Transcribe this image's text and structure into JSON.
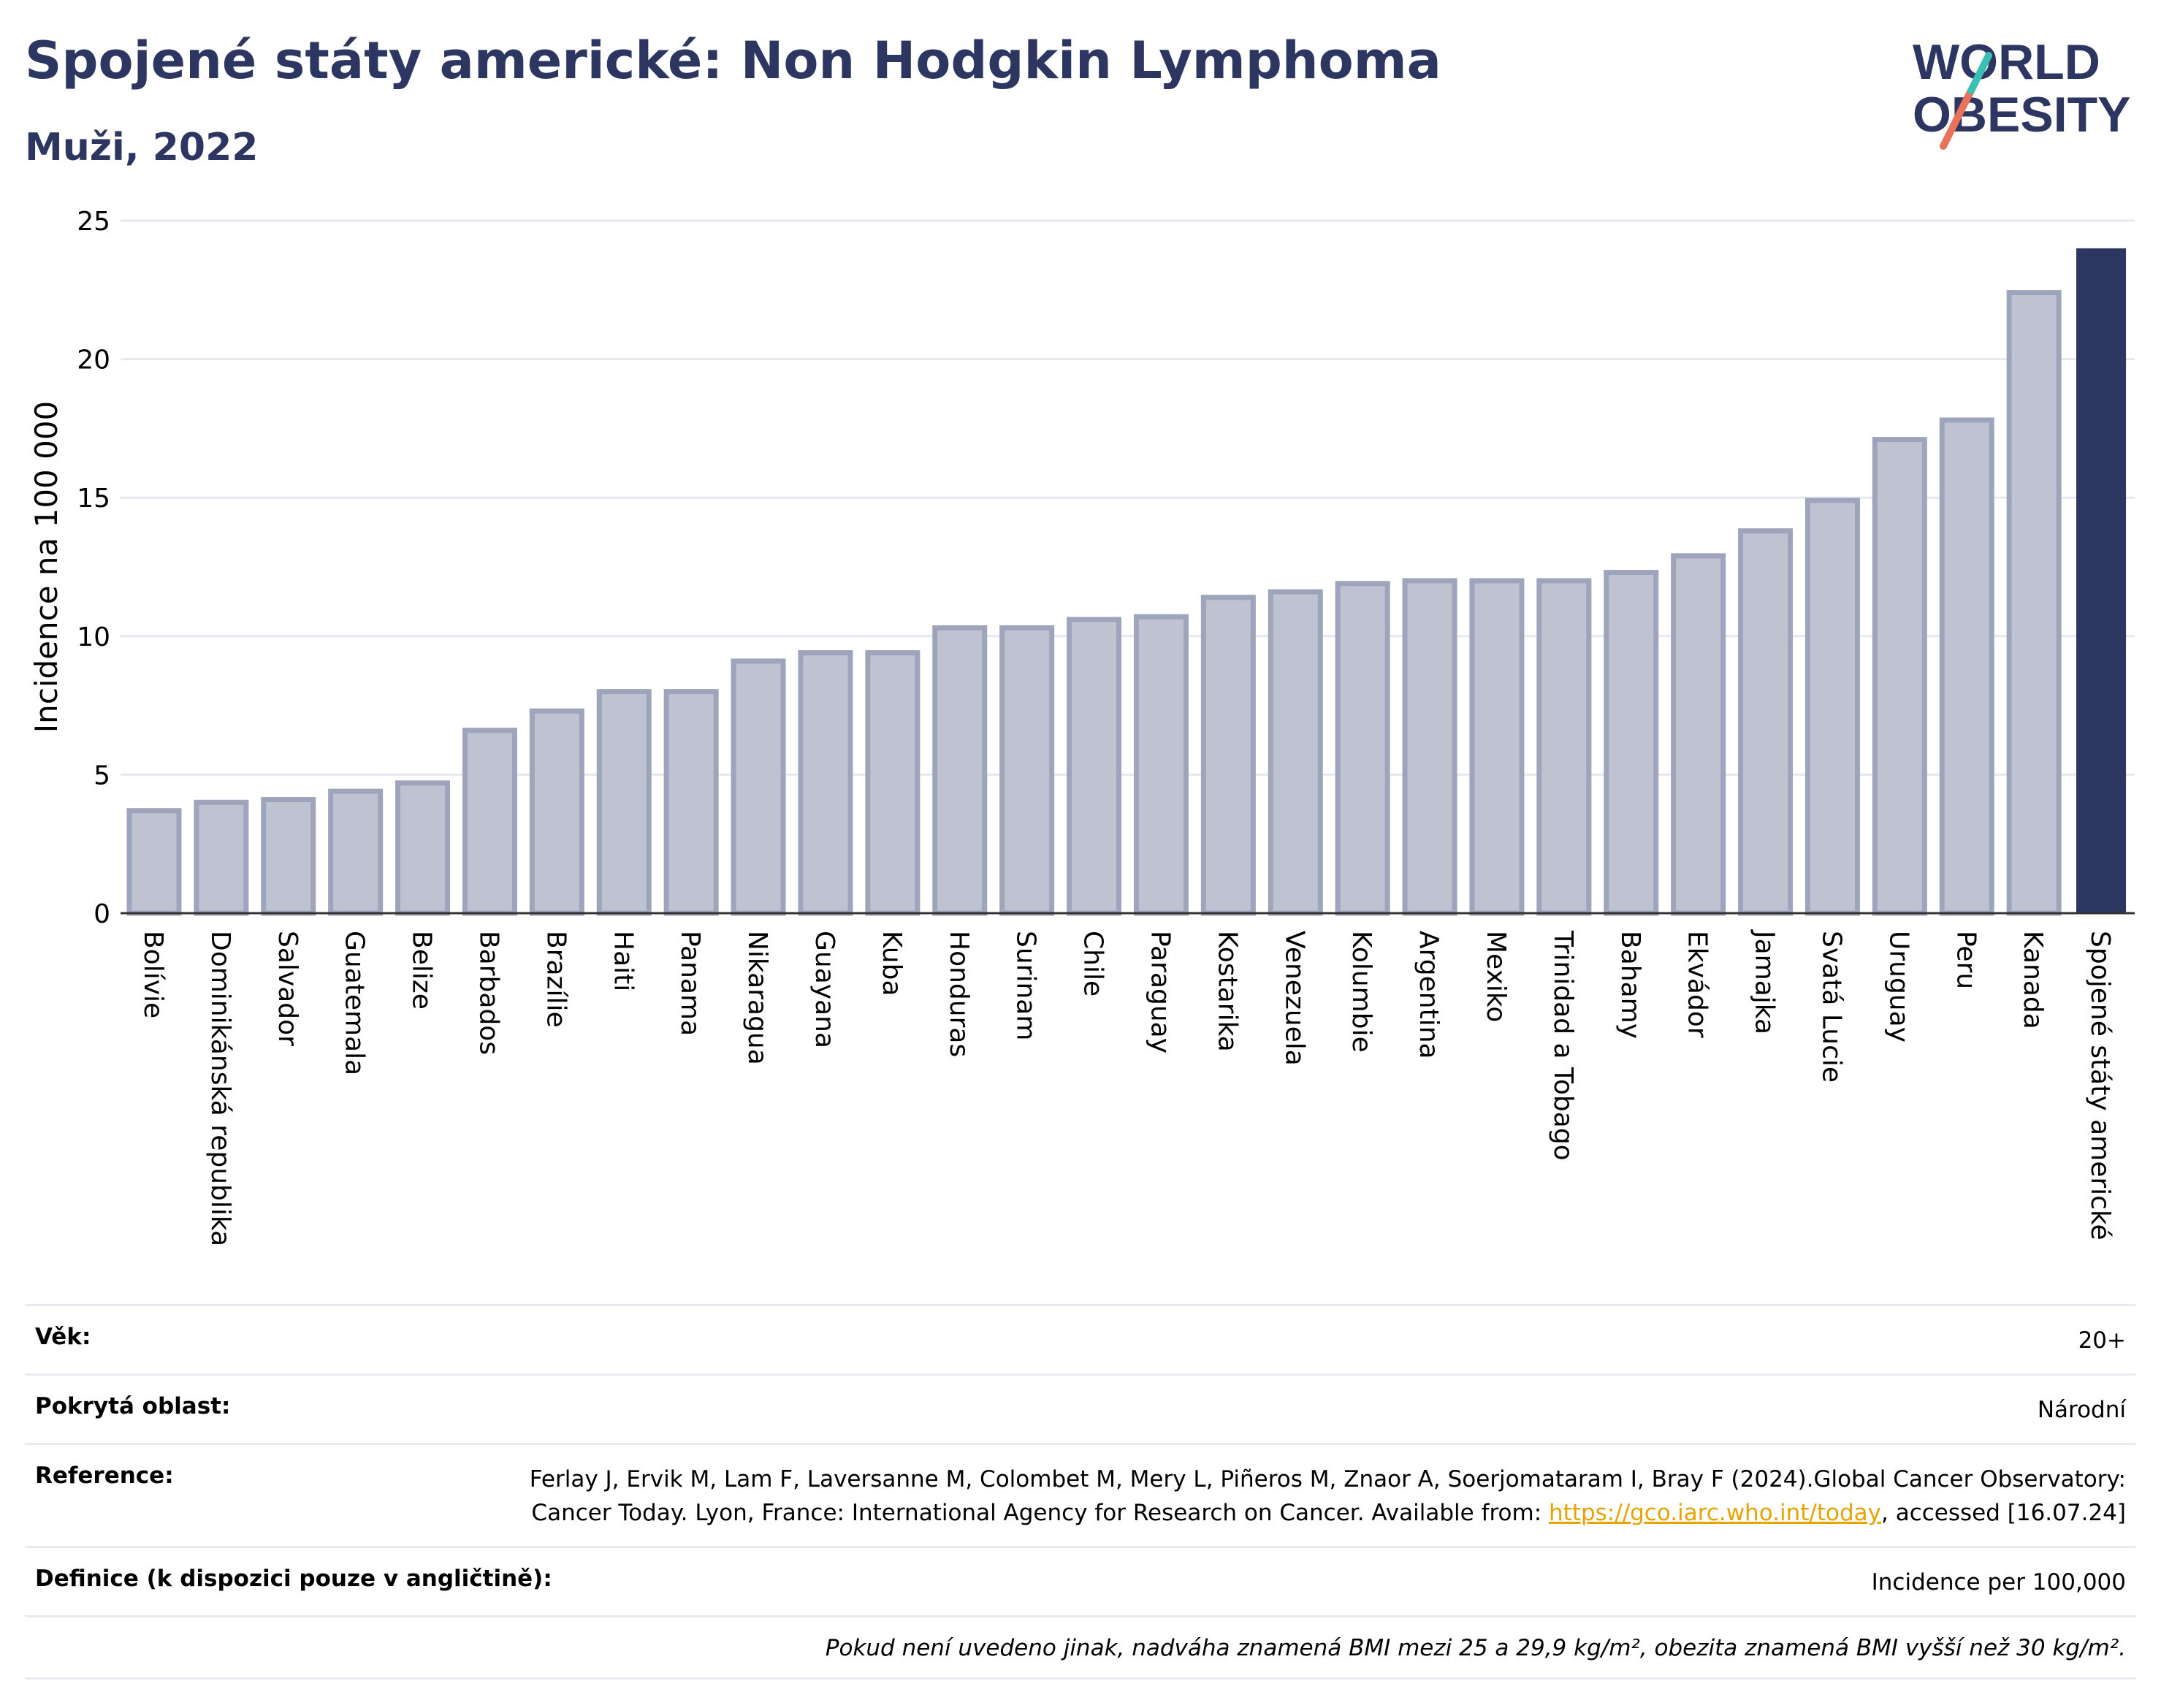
{
  "header": {
    "title": "Spojené státy americké: Non Hodgkin Lymphoma",
    "subtitle": "Muži, 2022"
  },
  "logo": {
    "line1": "WORLD",
    "line2": "OBESITY"
  },
  "colors": {
    "bar": "#bfc3d1",
    "bar_stroke": "#9ea4bb",
    "highlight": "#2d3561",
    "grid": "#e6e8ef"
  },
  "chart_data": {
    "type": "bar",
    "title": "Spojené státy americké: Non Hodgkin Lymphoma",
    "subtitle": "Muži, 2022",
    "ylabel": "Incidence na 100 000",
    "xlabel": "",
    "ylim": [
      0,
      25
    ],
    "yticks": [
      0,
      5,
      10,
      15,
      20,
      25
    ],
    "grid": true,
    "highlight": "Spojené státy americké",
    "categories": [
      "Bolívie",
      "Dominikánská republika",
      "Salvador",
      "Guatemala",
      "Belize",
      "Barbados",
      "Brazílie",
      "Haiti",
      "Panama",
      "Nikaragua",
      "Guayana",
      "Kuba",
      "Honduras",
      "Surinam",
      "Chile",
      "Paraguay",
      "Kostarika",
      "Venezuela",
      "Kolumbie",
      "Argentina",
      "Mexiko",
      "Trinidad a Tobago",
      "Bahamy",
      "Ekvádor",
      "Jamajka",
      "Svatá Lucie",
      "Uruguay",
      "Peru",
      "Kanada",
      "Spojené státy americké"
    ],
    "values": [
      3.7,
      4.0,
      4.1,
      4.4,
      4.7,
      6.6,
      7.3,
      8.0,
      8.0,
      9.1,
      9.4,
      9.4,
      10.3,
      10.3,
      10.6,
      10.7,
      11.4,
      11.6,
      11.9,
      12.0,
      12.0,
      12.0,
      12.3,
      12.9,
      13.8,
      14.9,
      17.1,
      17.8,
      22.4,
      24.0
    ]
  },
  "meta": {
    "age_label": "Věk:",
    "age_value": "20+",
    "area_label": "Pokrytá oblast:",
    "area_value": "Národní",
    "reference_label": "Reference:",
    "reference_text": "Ferlay J, Ervik M, Lam F, Laversanne M, Colombet M, Mery L, Piñeros M, Znaor A, Soerjomataram I, Bray F (2024).Global Cancer Observatory: Cancer Today. Lyon, France: International Agency for Research on Cancer. Available from: ",
    "reference_link": "https://gco.iarc.who.int/today",
    "reference_suffix": ", accessed [16.07.24]",
    "definition_label": "Definice (k dispozici pouze v angličtině):",
    "definition_value": "Incidence per 100,000",
    "note": "Pokud není uvedeno jinak, nadváha znamená BMI mezi 25 a 29,9 kg/m², obezita znamená BMI vyšší než 30 kg/m²."
  }
}
